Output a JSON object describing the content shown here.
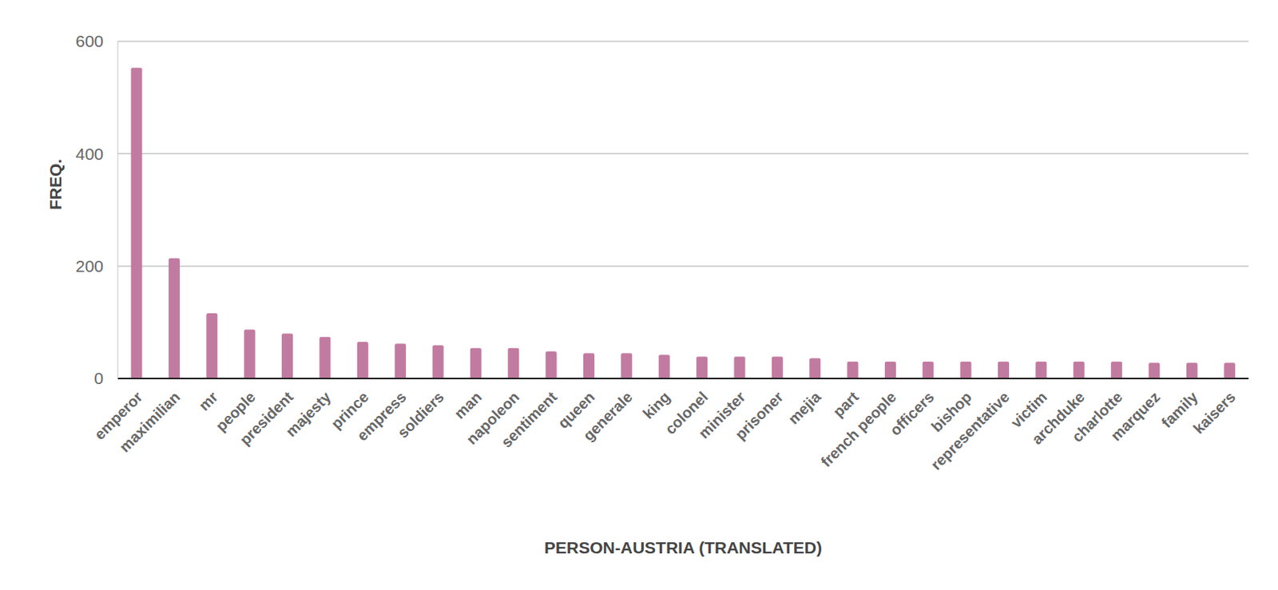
{
  "chart_data": {
    "type": "bar",
    "x_label": "PERSON-AUSTRIA (TRANSLATED)",
    "y_label": "FREQ.",
    "categories": [
      "emperor",
      "maximilian",
      "mr",
      "people",
      "president",
      "majesty",
      "prince",
      "empress",
      "soldiers",
      "man",
      "napoleon",
      "sentiment",
      "queen",
      "generale",
      "king",
      "colonel",
      "minister",
      "prisoner",
      "mejia",
      "part",
      "french people",
      "officers",
      "bishop",
      "representative",
      "victim",
      "archduke",
      "charlotte",
      "marquez",
      "family",
      "kaisers"
    ],
    "values": [
      553,
      214,
      116,
      87,
      80,
      74,
      65,
      62,
      59,
      54,
      54,
      48,
      45,
      45,
      42,
      39,
      39,
      39,
      36,
      30,
      30,
      30,
      30,
      30,
      30,
      30,
      30,
      28,
      28,
      28
    ],
    "color": "#c27ba0",
    "ylim": [
      0,
      600
    ],
    "yticks": [
      0,
      200,
      400,
      600
    ],
    "grid": true
  }
}
